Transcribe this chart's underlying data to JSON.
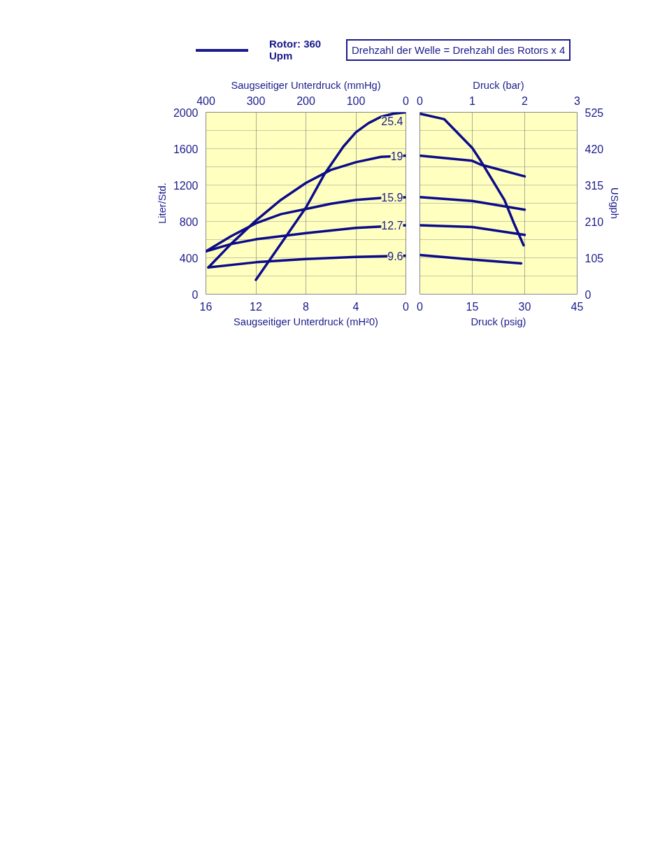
{
  "chart_data": [
    {
      "type": "line",
      "annotations": [
        "Rotor: 360 Upm",
        "Drehzahl der Welle = Drehzahl des Rotors x 4"
      ],
      "x2label": "Saugseitiger Unterdruck (mmHg)",
      "xlabel": "Saugseitiger Unterdruck (mH²0)",
      "ylabel": "Liter/Std.",
      "xlim": [
        16,
        0
      ],
      "xticks": [
        16,
        12,
        8,
        4,
        0
      ],
      "x2lim": [
        400,
        0
      ],
      "x2ticks": [
        400,
        300,
        200,
        100,
        0
      ],
      "ylim": [
        0,
        2000
      ],
      "yticks": [
        0,
        {
          "value": 200,
          "label": null
        },
        400,
        {
          "value": 600,
          "label": null
        },
        800,
        {
          "value": 1000,
          "label": null
        },
        1200,
        {
          "value": 1400,
          "label": null
        },
        1600,
        {
          "value": 1800,
          "label": null
        },
        2000
      ],
      "grid": true,
      "line_style": "solid",
      "marker": "none",
      "series": [
        {
          "name": "25.4",
          "color": "#0c0c8a",
          "x": [
            12,
            10,
            8,
            6.5,
            5,
            4,
            3,
            2,
            1,
            0
          ],
          "values": [
            157,
            554,
            951,
            1323,
            1623,
            1780,
            1880,
            1950,
            1985,
            2000
          ]
        },
        {
          "name": "19",
          "color": "#0c0c8a",
          "x": [
            15.8,
            14,
            12,
            10,
            8,
            6,
            4,
            2,
            0
          ],
          "values": [
            294,
            551,
            809,
            1037,
            1223,
            1366,
            1451,
            1509,
            1523
          ]
        },
        {
          "name": "15.9",
          "color": "#0c0c8a",
          "x": [
            16,
            14,
            12,
            10,
            8,
            6,
            4,
            2,
            0
          ],
          "values": [
            471,
            637,
            780,
            880,
            937,
            994,
            1037,
            1057,
            1066
          ]
        },
        {
          "name": "12.7",
          "color": "#0c0c8a",
          "x": [
            16,
            14,
            12,
            8,
            4,
            0
          ],
          "values": [
            471,
            551,
            603,
            671,
            729,
            757
          ]
        },
        {
          "name": "9.6",
          "color": "#0c0c8a",
          "x": [
            15.8,
            12,
            8,
            4,
            0
          ],
          "values": [
            294,
            351,
            386,
            409,
            423
          ]
        }
      ]
    },
    {
      "type": "line",
      "x2label": "Druck (bar)",
      "xlabel": "Druck (psig)",
      "ylabel": "USgph",
      "xlim": [
        0,
        45
      ],
      "xticks": [
        0,
        15,
        30,
        45
      ],
      "x2lim": [
        0,
        3
      ],
      "x2ticks": [
        0,
        1,
        2,
        3
      ],
      "ylim": [
        0,
        525
      ],
      "yticks": [
        0,
        {
          "value": 52.5,
          "label": null
        },
        105,
        {
          "value": 157.5,
          "label": null
        },
        210,
        {
          "value": 262.5,
          "label": null
        },
        315,
        {
          "value": 367.5,
          "label": null
        },
        420,
        {
          "value": 472.5,
          "label": null
        },
        525
      ],
      "grid": true,
      "line_style": "solid",
      "marker": "none",
      "series": [
        {
          "color": "#0c0c8a",
          "x": [
            0,
            7,
            15,
            17.4,
            24.2,
            26.9,
            29.7
          ],
          "values": [
            521,
            505,
            422,
            385,
            272,
            205,
            141
          ]
        },
        {
          "color": "#0c0c8a",
          "x": [
            0,
            15,
            17.4,
            30
          ],
          "values": [
            400,
            385,
            374,
            340
          ]
        },
        {
          "color": "#0c0c8a",
          "x": [
            0,
            15,
            30
          ],
          "values": [
            280,
            269,
            244
          ]
        },
        {
          "color": "#0c0c8a",
          "x": [
            0,
            15,
            30
          ],
          "values": [
            199,
            194,
            171
          ]
        },
        {
          "color": "#0c0c8a",
          "x": [
            0,
            15,
            29
          ],
          "values": [
            113,
            100,
            89
          ]
        }
      ]
    }
  ]
}
